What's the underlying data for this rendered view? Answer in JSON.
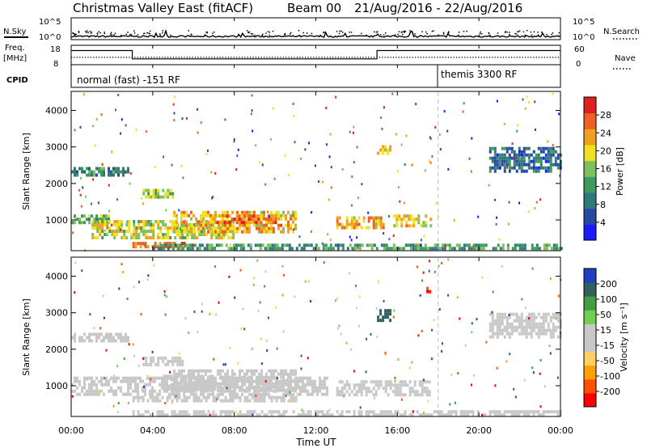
{
  "title": {
    "radar": "Christmas Valley East (fitACF)",
    "beam": "Beam 00",
    "dates": "21/Aug/2016 - 22/Aug/2016"
  },
  "panels_top": {
    "nsky_label": "N.Sky",
    "nsky_ticks": [
      "10^5",
      "10^0"
    ],
    "nsearch_label": "N.Search",
    "nsearch_ticks": [
      "10^5",
      "10^0"
    ],
    "freq_label_1": "Freq.",
    "freq_label_2": "[MHz]",
    "freq_ticks": [
      "18",
      "8"
    ],
    "nave_label": "Nave",
    "nave_ticks": [
      "60",
      "0"
    ],
    "cpid_label": "CPID",
    "cpid_1": "normal (fast) -151 RF",
    "cpid_2": "themis 3300 RF"
  },
  "colors": {
    "power_scale": [
      "#1a1aff",
      "#2848a8",
      "#2f7a78",
      "#3f9a60",
      "#7dc060",
      "#f0e020",
      "#f0a020",
      "#f06020",
      "#e02020"
    ],
    "velocity_scale": [
      "#ff0000",
      "#ff5000",
      "#ffa000",
      "#ffd060",
      "#c8c8c8",
      "#c8c8c8",
      "#70d050",
      "#40a040",
      "#306060",
      "#2040c0"
    ]
  },
  "chart_data": [
    {
      "type": "heatmap",
      "name": "power",
      "ylabel": "Slant Range [km]",
      "yticks": [
        "1000",
        "2000",
        "3000",
        "4000"
      ],
      "ylim": [
        180,
        4500
      ],
      "xlim": [
        "00:00",
        "24:00"
      ],
      "colorbar_label": "Power [dB]",
      "colorbar_ticks": [
        "4",
        "8",
        "12",
        "16",
        "20",
        "24",
        "28"
      ],
      "colorbar_range": [
        0,
        32
      ],
      "bands": [
        {
          "t0": 0.0,
          "t1": 2.8,
          "r0": 2200,
          "r1": 2450,
          "v": 10
        },
        {
          "t0": 0.0,
          "t1": 1.8,
          "r0": 900,
          "r1": 1150,
          "v": 14
        },
        {
          "t0": 1.0,
          "t1": 8.0,
          "r0": 500,
          "r1": 1000,
          "v": 18
        },
        {
          "t0": 3.5,
          "t1": 5.0,
          "r0": 1600,
          "r1": 1850,
          "v": 16
        },
        {
          "t0": 5.0,
          "t1": 11.0,
          "r0": 700,
          "r1": 1250,
          "v": 22
        },
        {
          "t0": 7.0,
          "t1": 10.0,
          "r0": 950,
          "r1": 1150,
          "v": 26
        },
        {
          "t0": 13.0,
          "t1": 15.3,
          "r0": 750,
          "r1": 1100,
          "v": 22
        },
        {
          "t0": 15.8,
          "t1": 17.6,
          "r0": 800,
          "r1": 1150,
          "v": 20
        },
        {
          "t0": 15.0,
          "t1": 15.6,
          "r0": 2800,
          "r1": 3050,
          "v": 20
        },
        {
          "t0": 3.0,
          "t1": 5.5,
          "r0": 250,
          "r1": 400,
          "v": 26
        },
        {
          "t0": 4.0,
          "t1": 24.0,
          "r0": 180,
          "r1": 350,
          "v": 12
        },
        {
          "t0": 20.5,
          "t1": 24.0,
          "r0": 2300,
          "r1": 3000,
          "v": 8
        }
      ]
    },
    {
      "type": "heatmap",
      "name": "velocity",
      "ylabel": "Slant Range [km]",
      "yticks": [
        "1000",
        "2000",
        "3000",
        "4000"
      ],
      "ylim": [
        180,
        4500
      ],
      "xlabel": "Time UT",
      "xticks": [
        "00:00",
        "04:00",
        "08:00",
        "12:00",
        "16:00",
        "20:00",
        "00:00"
      ],
      "xlim": [
        "00:00",
        "24:00"
      ],
      "colorbar_label": "Velocity [m s⁻¹]",
      "colorbar_ticks": [
        "-200",
        "-100",
        "-50",
        "-15",
        "15",
        "50",
        "100",
        "200"
      ],
      "colorbar_range": [
        -250,
        250
      ],
      "bands": [
        {
          "t0": 0.0,
          "t1": 2.8,
          "r0": 2200,
          "r1": 2450,
          "v": 0
        },
        {
          "t0": 0.0,
          "t1": 12.5,
          "r0": 800,
          "r1": 1250,
          "v": 0
        },
        {
          "t0": 3.5,
          "t1": 5.5,
          "r0": 1550,
          "r1": 1800,
          "v": -30
        },
        {
          "t0": 5.0,
          "t1": 11.0,
          "r0": 900,
          "r1": 1450,
          "v": 30
        },
        {
          "t0": 4.5,
          "t1": 7.0,
          "r0": 900,
          "r1": 1300,
          "v": -40
        },
        {
          "t0": 13.0,
          "t1": 17.6,
          "r0": 750,
          "r1": 1150,
          "v": 0
        },
        {
          "t0": 3.0,
          "t1": 11.0,
          "r0": 550,
          "r1": 720,
          "v": 0
        },
        {
          "t0": 3.0,
          "t1": 24.0,
          "r0": 180,
          "r1": 330,
          "v": -40
        },
        {
          "t0": 15.0,
          "t1": 15.6,
          "r0": 2800,
          "r1": 3100,
          "v": 180
        },
        {
          "t0": 17.3,
          "t1": 17.6,
          "r0": 3500,
          "r1": 3800,
          "v": -200
        },
        {
          "t0": 20.5,
          "t1": 24.0,
          "r0": 2300,
          "r1": 3000,
          "v": 0
        }
      ]
    },
    {
      "type": "line",
      "name": "frequency",
      "ylim": [
        8,
        18
      ],
      "x": [
        "00:00",
        "03:00",
        "03:00",
        "15:00",
        "15:00",
        "24:00"
      ],
      "y": [
        15.5,
        15.5,
        10.8,
        10.8,
        15.5,
        15.5
      ]
    },
    {
      "type": "scatter",
      "name": "nave",
      "ylim": [
        0,
        60
      ],
      "x": [
        "00:00",
        "24:00"
      ],
      "y": [
        22,
        22
      ]
    },
    {
      "type": "line",
      "name": "nsky",
      "ylim": [
        0,
        5
      ],
      "x": [
        "00:00",
        "24:00"
      ],
      "y": [
        0.6,
        0.6
      ]
    }
  ]
}
